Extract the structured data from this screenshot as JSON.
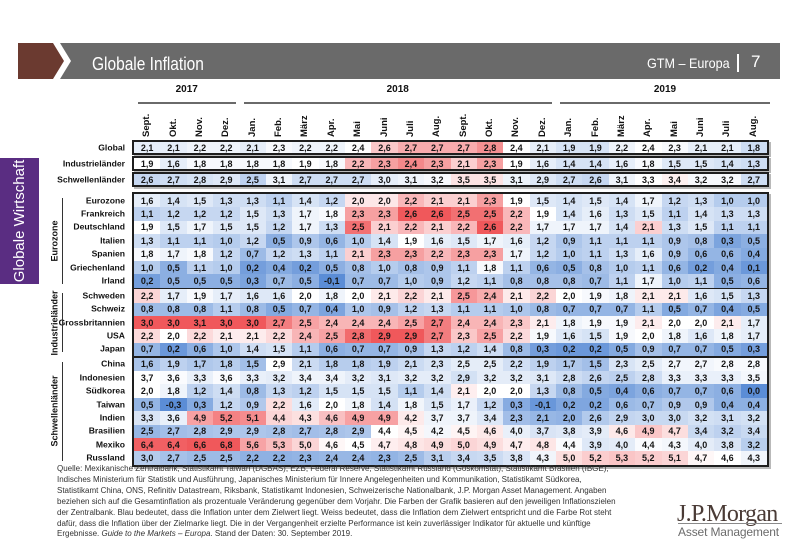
{
  "header": {
    "title": "Globale Inflation",
    "series": "GTM – Europa",
    "page_number": "7"
  },
  "side_tab": {
    "label": "Globale Wirtschaft"
  },
  "chart_data": {
    "type": "heatmap",
    "title": "Globale Inflation",
    "years": [
      {
        "label": "2017",
        "months": 4
      },
      {
        "label": "2018",
        "months": 12
      },
      {
        "label": "2019",
        "months": 8
      }
    ],
    "columns": [
      "Sept.",
      "Okt.",
      "Nov.",
      "Dez.",
      "Jan.",
      "Feb.",
      "März",
      "Apr.",
      "Mai",
      "Juni",
      "Juli",
      "Aug.",
      "Sept.",
      "Okt.",
      "Nov.",
      "Dez.",
      "Jan.",
      "Feb.",
      "März",
      "Apr.",
      "Mai",
      "Juni",
      "Juli",
      "Aug."
    ],
    "summary_rows": [
      {
        "label": "Global",
        "values": [
          2.1,
          2.1,
          2.2,
          2.2,
          2.1,
          2.3,
          2.2,
          2.2,
          2.4,
          2.6,
          2.7,
          2.7,
          2.7,
          2.8,
          2.4,
          2.1,
          1.9,
          1.9,
          2.2,
          2.4,
          2.3,
          2.1,
          2.1,
          1.8
        ]
      },
      {
        "label": "Industrieländer",
        "values": [
          1.9,
          1.6,
          1.8,
          1.8,
          1.8,
          1.8,
          1.9,
          1.8,
          2.2,
          2.3,
          2.4,
          2.3,
          2.1,
          2.3,
          1.9,
          1.6,
          1.4,
          1.4,
          1.6,
          1.8,
          1.5,
          1.5,
          1.4,
          1.3
        ]
      },
      {
        "label": "Schwellenländer",
        "values": [
          2.6,
          2.7,
          2.8,
          2.9,
          2.5,
          3.1,
          2.7,
          2.7,
          2.7,
          3.0,
          3.1,
          3.2,
          3.5,
          3.5,
          3.1,
          2.9,
          2.7,
          2.6,
          3.1,
          3.3,
          3.4,
          3.2,
          3.2,
          2.7
        ]
      }
    ],
    "groups": [
      {
        "label": "Eurozone",
        "rows": [
          {
            "label": "Eurozone",
            "values": [
              1.6,
              1.4,
              1.5,
              1.3,
              1.3,
              1.1,
              1.4,
              1.2,
              2.0,
              2.0,
              2.2,
              2.1,
              2.1,
              2.3,
              1.9,
              1.5,
              1.4,
              1.5,
              1.4,
              1.7,
              1.2,
              1.3,
              1.0,
              1.0
            ]
          },
          {
            "label": "Frankreich",
            "values": [
              1.1,
              1.2,
              1.2,
              1.2,
              1.5,
              1.3,
              1.7,
              1.8,
              2.3,
              2.3,
              2.6,
              2.6,
              2.5,
              2.5,
              2.2,
              1.9,
              1.4,
              1.6,
              1.3,
              1.5,
              1.1,
              1.4,
              1.3,
              1.3
            ]
          },
          {
            "label": "Deutschland",
            "values": [
              1.9,
              1.5,
              1.7,
              1.5,
              1.5,
              1.2,
              1.7,
              1.3,
              2.5,
              2.1,
              2.2,
              2.1,
              2.2,
              2.6,
              2.2,
              1.7,
              1.7,
              1.7,
              1.4,
              2.1,
              1.3,
              1.5,
              1.1,
              1.1
            ]
          },
          {
            "label": "Italien",
            "values": [
              1.3,
              1.1,
              1.1,
              1.0,
              1.2,
              0.5,
              0.9,
              0.6,
              1.0,
              1.4,
              1.9,
              1.6,
              1.5,
              1.7,
              1.6,
              1.2,
              0.9,
              1.1,
              1.1,
              1.1,
              0.9,
              0.8,
              0.3,
              0.5
            ]
          },
          {
            "label": "Spanien",
            "values": [
              1.8,
              1.7,
              1.8,
              1.2,
              0.7,
              1.2,
              1.3,
              1.1,
              2.1,
              2.3,
              2.3,
              2.2,
              2.3,
              2.3,
              1.7,
              1.2,
              1.0,
              1.1,
              1.3,
              1.6,
              0.9,
              0.6,
              0.6,
              0.4
            ]
          },
          {
            "label": "Griechenland",
            "values": [
              1.0,
              0.5,
              1.1,
              1.0,
              0.2,
              0.4,
              0.2,
              0.5,
              0.8,
              1.0,
              0.8,
              0.9,
              1.1,
              1.8,
              1.1,
              0.6,
              0.5,
              0.8,
              1.0,
              1.1,
              0.6,
              0.2,
              0.4,
              0.1
            ]
          },
          {
            "label": "Irland",
            "values": [
              0.2,
              0.5,
              0.5,
              0.5,
              0.3,
              0.7,
              0.5,
              -0.1,
              0.7,
              0.7,
              1.0,
              0.9,
              1.2,
              1.1,
              0.8,
              0.8,
              0.8,
              0.7,
              1.1,
              1.7,
              1.0,
              1.1,
              0.5,
              0.6
            ]
          }
        ]
      },
      {
        "label": "Industrieländer",
        "rows": [
          {
            "label": "Schweden",
            "values": [
              2.2,
              1.7,
              1.9,
              1.7,
              1.6,
              1.6,
              2.0,
              1.8,
              2.0,
              2.1,
              2.2,
              2.1,
              2.5,
              2.4,
              2.1,
              2.2,
              2.0,
              1.9,
              1.8,
              2.1,
              2.1,
              1.6,
              1.5,
              1.3
            ]
          },
          {
            "label": "Schweiz",
            "values": [
              0.8,
              0.8,
              0.8,
              1.1,
              0.8,
              0.5,
              0.7,
              0.4,
              1.0,
              0.9,
              1.2,
              1.3,
              1.1,
              1.1,
              1.0,
              0.8,
              0.7,
              0.7,
              0.7,
              1.1,
              0.5,
              0.7,
              0.4,
              0.5
            ]
          },
          {
            "label": "Grossbritannien",
            "values": [
              3.0,
              3.0,
              3.1,
              3.0,
              3.0,
              2.7,
              2.5,
              2.4,
              2.4,
              2.4,
              2.5,
              2.7,
              2.4,
              2.4,
              2.3,
              2.1,
              1.8,
              1.9,
              1.9,
              2.1,
              2.0,
              2.0,
              2.1,
              1.7
            ]
          },
          {
            "label": "USA",
            "values": [
              2.2,
              2.0,
              2.2,
              2.1,
              2.1,
              2.2,
              2.4,
              2.5,
              2.8,
              2.9,
              2.9,
              2.7,
              2.3,
              2.5,
              2.2,
              1.9,
              1.6,
              1.5,
              1.9,
              2.0,
              1.8,
              1.6,
              1.8,
              1.7
            ]
          },
          {
            "label": "Japan",
            "values": [
              0.7,
              0.2,
              0.6,
              1.0,
              1.4,
              1.5,
              1.1,
              0.6,
              0.7,
              0.7,
              0.9,
              1.3,
              1.2,
              1.4,
              0.8,
              0.3,
              0.2,
              0.2,
              0.5,
              0.9,
              0.7,
              0.7,
              0.5,
              0.3
            ]
          }
        ]
      },
      {
        "label": "Schwellenländer",
        "rows": [
          {
            "label": "China",
            "values": [
              1.6,
              1.9,
              1.7,
              1.8,
              1.5,
              2.9,
              2.1,
              1.8,
              1.8,
              1.9,
              2.1,
              2.3,
              2.5,
              2.5,
              2.2,
              1.9,
              1.7,
              1.5,
              2.3,
              2.5,
              2.7,
              2.7,
              2.8,
              2.8
            ]
          },
          {
            "label": "Indonesien",
            "values": [
              3.7,
              3.6,
              3.3,
              3.6,
              3.3,
              3.2,
              3.4,
              3.4,
              3.2,
              3.1,
              3.2,
              3.2,
              2.9,
              3.2,
              3.2,
              3.1,
              2.8,
              2.6,
              2.5,
              2.8,
              3.3,
              3.3,
              3.3,
              3.5
            ]
          },
          {
            "label": "Südkorea",
            "values": [
              2.0,
              1.8,
              1.2,
              1.4,
              0.8,
              1.3,
              1.2,
              1.5,
              1.5,
              1.5,
              1.1,
              1.4,
              2.1,
              2.0,
              2.0,
              1.3,
              0.8,
              0.5,
              0.4,
              0.6,
              0.7,
              0.7,
              0.6,
              0.0
            ]
          },
          {
            "label": "Taiwan",
            "values": [
              0.5,
              -0.3,
              0.3,
              1.2,
              0.9,
              2.2,
              1.6,
              2.0,
              1.8,
              1.4,
              1.8,
              1.5,
              1.7,
              1.2,
              0.3,
              -0.1,
              0.2,
              0.2,
              0.6,
              0.7,
              0.9,
              0.9,
              0.4,
              0.4
            ]
          },
          {
            "label": "Indien",
            "values": [
              3.3,
              3.6,
              4.9,
              5.2,
              5.1,
              4.4,
              4.3,
              4.6,
              4.9,
              4.9,
              4.2,
              3.7,
              3.7,
              3.4,
              2.3,
              2.1,
              2.0,
              2.6,
              2.9,
              3.0,
              3.0,
              3.2,
              3.1,
              3.2
            ]
          },
          {
            "label": "Brasilien",
            "values": [
              2.5,
              2.7,
              2.8,
              2.9,
              2.9,
              2.8,
              2.7,
              2.8,
              2.9,
              4.4,
              4.5,
              4.2,
              4.5,
              4.6,
              4.0,
              3.7,
              3.8,
              3.9,
              4.6,
              4.9,
              4.7,
              3.4,
              3.2,
              3.4
            ]
          },
          {
            "label": "Mexiko",
            "values": [
              6.4,
              6.4,
              6.6,
              6.8,
              5.6,
              5.3,
              5.0,
              4.6,
              4.5,
              4.7,
              4.8,
              4.9,
              5.0,
              4.9,
              4.7,
              4.8,
              4.4,
              3.9,
              4.0,
              4.4,
              4.3,
              4.0,
              3.8,
              3.2
            ]
          },
          {
            "label": "Russland",
            "values": [
              3.0,
              2.7,
              2.5,
              2.5,
              2.2,
              2.2,
              2.3,
              2.4,
              2.4,
              2.3,
              2.5,
              3.1,
              3.4,
              3.5,
              3.8,
              4.3,
              5.0,
              5.2,
              5.3,
              5.2,
              5.1,
              4.7,
              4.6,
              4.3
            ]
          }
        ]
      }
    ],
    "colors": {
      "below_target": "#5b8dd6",
      "at_target": "#ffffff",
      "above_target": "#f0585b"
    }
  },
  "footer": {
    "lines": [
      "Quelle: Mexikanische Zentralbank, Statistikamt Taiwan (DGBAS), EZB, Federal Reserve, Statistikamt Russland (Goskomstat), Statistikamt Brasilien (IBGE),",
      "Indisches Ministerium für Statistik und Ausführung, Japanisches Ministerium für Innere Angelegenheiten und Kommunikation, Statistikamt Südkorea,",
      "Statistikamt China, ONS, Refinitiv Datastream, Riksbank, Statistikamt Indonesien, Schweizerische Nationalbank, J.P. Morgan Asset Management. Angaben",
      "beziehen sich auf die Gesamtinflation als prozentuale Veränderung gegenüber dem Vorjahr. Die Farben der Grafik basieren auf den jeweiligen Inflationszielen",
      "der Zentralbank. Blau bedeutet, dass die Inflation unter dem Zielwert liegt. Weiss bedeutet, dass die Inflation dem Zielwert entspricht und die Farbe Rot steht",
      "dafür, dass die Inflation über der Zielmarke liegt. Die in der Vergangenheit erzielte Performance ist kein zuverlässiger Indikator für aktuelle und künftige"
    ],
    "last_line": {
      "prefix": "Ergebnisse. ",
      "italic": "Guide to the Markets – Europa",
      "suffix": ". Stand der Daten: 30. September 2019."
    }
  },
  "logo": {
    "brand": "J.P.Morgan",
    "division": "Asset Management"
  }
}
